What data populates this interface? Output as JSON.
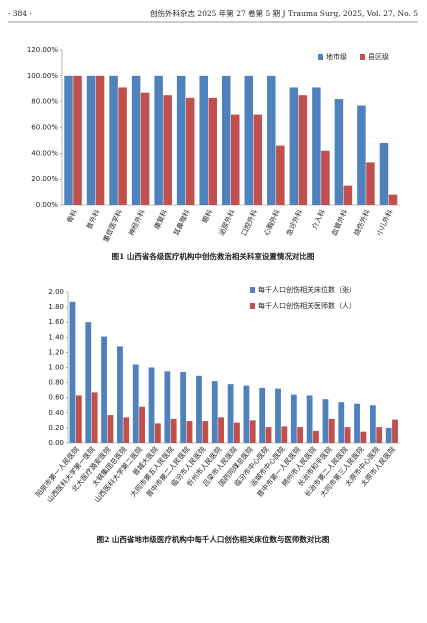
{
  "header": {
    "page": "· 384 ·",
    "journal": "创伤外科杂志 2025 年第 27 卷第 5 期   J Trauma Surg, 2025, Vol. 27, No. 5"
  },
  "chart_data": [
    {
      "type": "bar",
      "title": "图1  山西省各级医疗机构中创伤救治相关科室设置情况对比图",
      "categories": [
        "骨科",
        "普外科",
        "重症医学科",
        "神经外科",
        "康复科",
        "耳鼻喉科",
        "眼科",
        "泌尿外科",
        "口腔外科",
        "心胸外科",
        "急诊外科",
        "介入科",
        "血管外科",
        "烧伤外科",
        "小儿外科"
      ],
      "series": [
        {
          "name": "地市级",
          "color": "#4f81bd",
          "values": [
            100,
            100,
            100,
            100,
            100,
            100,
            100,
            100,
            100,
            100,
            91,
            91,
            82,
            77,
            48
          ]
        },
        {
          "name": "县区级",
          "color": "#c0504d",
          "values": [
            100,
            100,
            91,
            87,
            85,
            83,
            83,
            70,
            70,
            46,
            85,
            42,
            15,
            33,
            8
          ]
        }
      ],
      "ylim": [
        0,
        120
      ],
      "yticks": [
        {
          "value": 0,
          "label": "0.00%"
        },
        {
          "value": 20,
          "label": "20.00%"
        },
        {
          "value": 40,
          "label": "40.00%"
        },
        {
          "value": 60,
          "label": "60.00%"
        },
        {
          "value": 80,
          "label": "80.00%"
        },
        {
          "value": 100,
          "label": "100.00%"
        },
        {
          "value": 120,
          "label": "120.00%"
        }
      ],
      "legend": "top-right"
    },
    {
      "type": "bar",
      "title": "图2  山西省地市级医疗机构中每千人口创伤相关床位数与医师数对比图",
      "categories": [
        "阳泉市第一人民医院",
        "山西医科大学第一医院",
        "北大医疗潞安医院",
        "太钢集团总医院",
        "山西医科大学第二医院",
        "晋城大医院",
        "大同市第五人民医院",
        "晋中市第二人民医院",
        "临汾市人民医院",
        "忻州市人民医院",
        "吕梁市人民医院",
        "国药同煤总医院",
        "临汾市中心医院",
        "运城市中心医院",
        "晋中市第一人民医院",
        "朔州市人民医院",
        "长治市和平医院",
        "长治市第二人民医院",
        "大同市第三人民医院",
        "太原市中心医院",
        "太原市人民医院"
      ],
      "series": [
        {
          "name": "每千人口创伤相关床位数（张）",
          "color": "#4f81bd",
          "values": [
            1.87,
            1.6,
            1.41,
            1.28,
            1.04,
            1.0,
            0.95,
            0.94,
            0.89,
            0.82,
            0.78,
            0.76,
            0.73,
            0.72,
            0.64,
            0.63,
            0.58,
            0.54,
            0.52,
            0.5,
            0.2
          ]
        },
        {
          "name": "每千人口创伤相关医师数（人）",
          "color": "#c0504d",
          "values": [
            0.63,
            0.67,
            0.37,
            0.34,
            0.48,
            0.26,
            0.32,
            0.29,
            0.29,
            0.34,
            0.27,
            0.3,
            0.21,
            0.22,
            0.21,
            0.16,
            0.32,
            0.21,
            0.15,
            0.21,
            0.31
          ]
        }
      ],
      "ylim": [
        0,
        2
      ],
      "yticks": [
        {
          "value": 0,
          "label": "0.00"
        },
        {
          "value": 0.2,
          "label": "0.20"
        },
        {
          "value": 0.4,
          "label": "0.40"
        },
        {
          "value": 0.6,
          "label": "0.60"
        },
        {
          "value": 0.8,
          "label": "0.80"
        },
        {
          "value": 1,
          "label": "1.00"
        },
        {
          "value": 1.2,
          "label": "1.20"
        },
        {
          "value": 1.4,
          "label": "1.40"
        },
        {
          "value": 1.6,
          "label": "1.60"
        },
        {
          "value": 1.8,
          "label": "1.80"
        },
        {
          "value": 2,
          "label": "2.00"
        }
      ],
      "legend": "top-right"
    }
  ]
}
